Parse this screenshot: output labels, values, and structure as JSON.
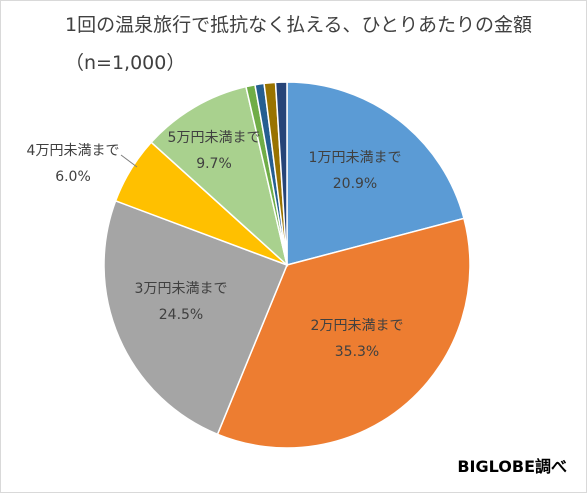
{
  "chart_data": {
    "type": "pie",
    "title": "1回の温泉旅行で抵抗なく払える、ひとりあたりの金額",
    "subtitle": "（n=1,000）",
    "source": "BIGLOBE調べ",
    "start_angle_deg": 0,
    "direction": "clockwise",
    "slices": [
      {
        "label": "1万円未満まで",
        "value_label": "20.9%",
        "value": 20.9,
        "color": "#5b9bd5"
      },
      {
        "label": "2万円未満まで",
        "value_label": "35.3%",
        "value": 35.3,
        "color": "#ed7d31"
      },
      {
        "label": "3万円未満まで",
        "value_label": "24.5%",
        "value": 24.5,
        "color": "#a5a5a5"
      },
      {
        "label": "4万円未満まで",
        "value_label": "6.0%",
        "value": 6.0,
        "color": "#ffc000"
      },
      {
        "label": "5万円未満まで",
        "value_label": "9.7%",
        "value": 9.7,
        "color": "#a9d18e"
      },
      {
        "label": "",
        "value_label": "",
        "value": 0.8,
        "color": "#70ad47"
      },
      {
        "label": "",
        "value_label": "",
        "value": 0.8,
        "color": "#255e91"
      },
      {
        "label": "",
        "value_label": "",
        "value": 1.0,
        "color": "#997300"
      },
      {
        "label": "",
        "value_label": "",
        "value": 1.0,
        "color": "#264478"
      }
    ]
  }
}
